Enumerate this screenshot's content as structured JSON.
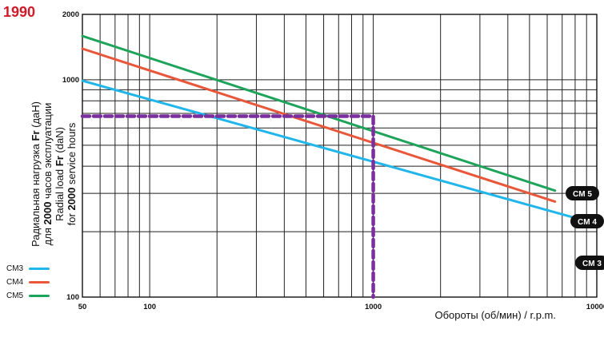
{
  "title": "1990",
  "ylabel": {
    "ru_prefix": "Радиальная нагрузка",
    "ru_bold": "Fr",
    "ru_unit": "(даН)",
    "ru2_prefix": "для",
    "ru2_bold": "2000",
    "ru2_suffix": "часов эксплуатации",
    "en_prefix": "Radial load",
    "en_bold": "Fr",
    "en_unit": "(daN)",
    "en2_prefix": "for",
    "en2_bold": "2000",
    "en2_suffix": "service hours"
  },
  "legend": [
    {
      "label": "CM3",
      "color": "#21b6ea"
    },
    {
      "label": "CM4",
      "color": "#e9573a"
    },
    {
      "label": "CM5",
      "color": "#1ea45a"
    }
  ],
  "chart_data": {
    "type": "line",
    "xlabel": "Обороты (об/мин) / r.p.m.",
    "xscale": "log",
    "yscale": "log",
    "xlim": [
      50,
      10000
    ],
    "ylim": [
      100,
      2000
    ],
    "x_ticks": [
      {
        "value": 50,
        "label": "50"
      },
      {
        "value": 100,
        "label": "100"
      },
      {
        "value": 1000,
        "label": "1000"
      },
      {
        "value": 10000,
        "label": "10000"
      }
    ],
    "y_ticks": [
      {
        "value": 100,
        "label": "100"
      },
      {
        "value": 1000,
        "label": "1000"
      },
      {
        "value": 2000,
        "label": "2000"
      }
    ],
    "grid": true,
    "series": [
      {
        "name": "CM 3",
        "color": "#21b6ea",
        "x": [
          50,
          10000
        ],
        "y": [
          990,
          217
        ]
      },
      {
        "name": "CM 4",
        "color": "#e9573a",
        "x": [
          50,
          6500
        ],
        "y": [
          1390,
          275
        ]
      },
      {
        "name": "CM 5",
        "color": "#1ea45a",
        "x": [
          50,
          6500
        ],
        "y": [
          1590,
          309
        ]
      }
    ],
    "annotation": {
      "x": 1000,
      "y": 680,
      "color": "#7b2f9e"
    }
  }
}
